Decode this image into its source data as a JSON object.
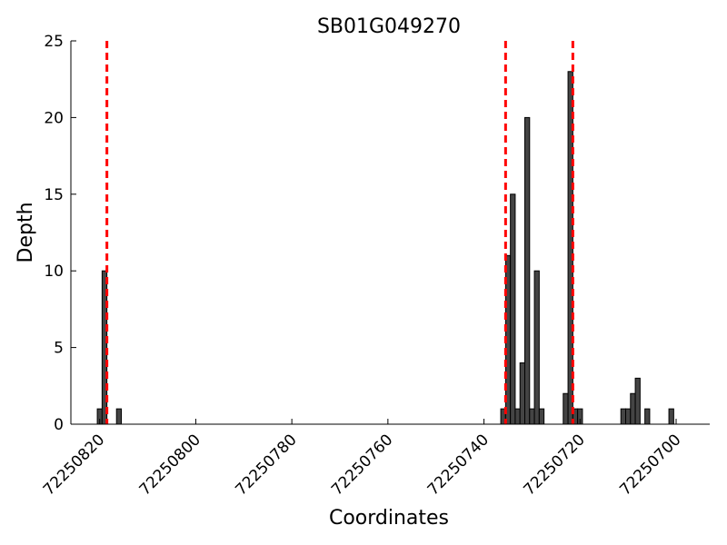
{
  "chart_data": {
    "type": "bar",
    "title": "SB01G049270",
    "xlabel": "Coordinates",
    "ylabel": "Depth",
    "x_reversed": true,
    "xlim": [
      72250826,
      72250693
    ],
    "ylim": [
      0,
      25
    ],
    "x_ticks": [
      72250820,
      72250800,
      72250780,
      72250760,
      72250740,
      72250720,
      72250700
    ],
    "y_ticks": [
      0,
      5,
      10,
      15,
      20,
      25
    ],
    "bar_width": 1,
    "bar_color": "#444444",
    "bars": [
      {
        "x": 72250820,
        "value": 1
      },
      {
        "x": 72250819,
        "value": 10
      },
      {
        "x": 72250816,
        "value": 1
      },
      {
        "x": 72250736,
        "value": 1
      },
      {
        "x": 72250735,
        "value": 11
      },
      {
        "x": 72250734,
        "value": 15
      },
      {
        "x": 72250733,
        "value": 1
      },
      {
        "x": 72250732,
        "value": 4
      },
      {
        "x": 72250731,
        "value": 20
      },
      {
        "x": 72250730,
        "value": 1
      },
      {
        "x": 72250729,
        "value": 10
      },
      {
        "x": 72250728,
        "value": 1
      },
      {
        "x": 72250723,
        "value": 2
      },
      {
        "x": 72250722,
        "value": 23
      },
      {
        "x": 72250721,
        "value": 1
      },
      {
        "x": 72250720,
        "value": 1
      },
      {
        "x": 72250711,
        "value": 1
      },
      {
        "x": 72250710,
        "value": 1
      },
      {
        "x": 72250709,
        "value": 2
      },
      {
        "x": 72250708,
        "value": 3
      },
      {
        "x": 72250706,
        "value": 1
      },
      {
        "x": 72250701,
        "value": 1
      }
    ],
    "vlines": [
      {
        "x": 72250818.5,
        "color": "#ff0000",
        "style": "dashed"
      },
      {
        "x": 72250735.5,
        "color": "#ff0000",
        "style": "dashed"
      },
      {
        "x": 72250721.5,
        "color": "#ff0000",
        "style": "dashed"
      }
    ],
    "grid": false,
    "legend": "none"
  }
}
